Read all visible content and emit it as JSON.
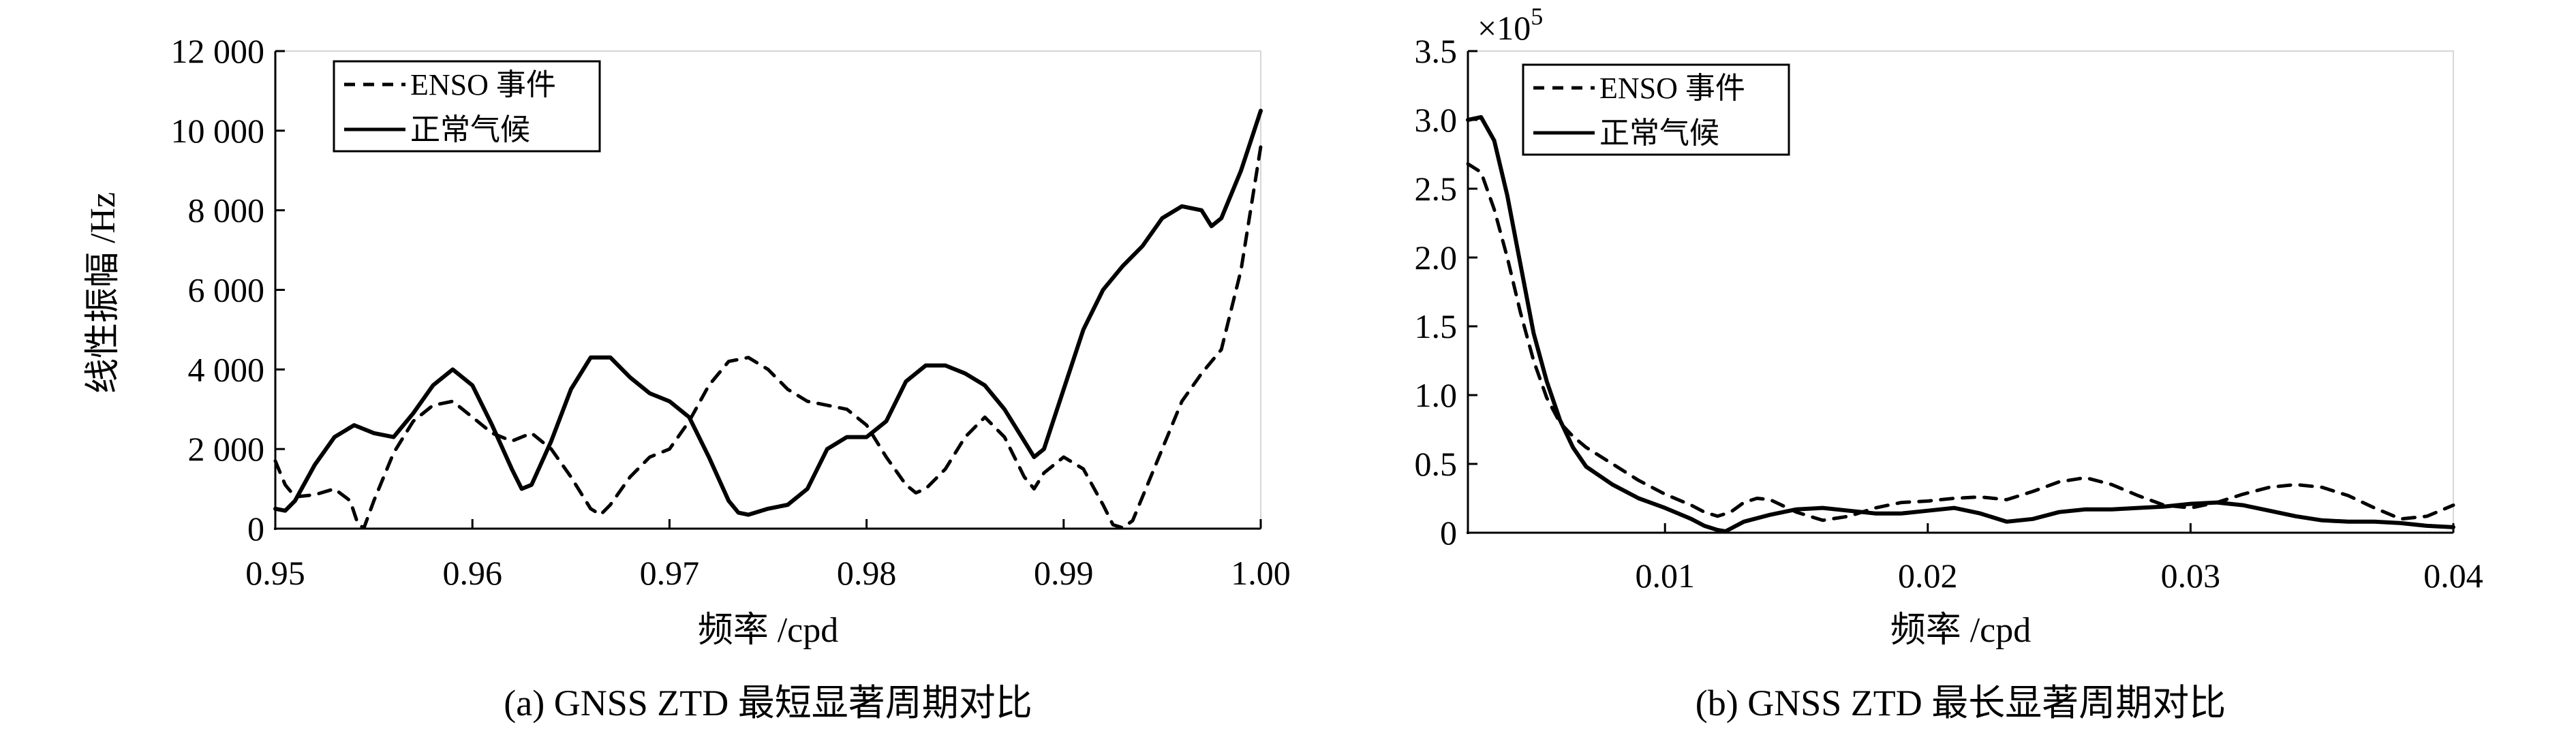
{
  "chart_data": [
    {
      "type": "line",
      "panel": "a",
      "caption": "(a) GNSS ZTD 最短显著周期对比",
      "xlabel": "频率 /cpd",
      "ylabel": "线性振幅 /Hz",
      "xlim": [
        0.95,
        1.0
      ],
      "ylim": [
        0,
        12000
      ],
      "y_multiplier": "",
      "xticks": [
        0.95,
        0.96,
        0.97,
        0.98,
        0.99,
        1.0
      ],
      "xtick_labels": [
        "0.95",
        "0.96",
        "0.97",
        "0.98",
        "0.99",
        "1.00"
      ],
      "yticks": [
        0,
        2000,
        4000,
        6000,
        8000,
        10000,
        12000
      ],
      "ytick_labels": [
        "0",
        "2 000",
        "4 000",
        "6 000",
        "8 000",
        "10 000",
        "12 000"
      ],
      "legend_position": "top-left",
      "series": [
        {
          "name": "ENSO 事件",
          "style": "dashed",
          "points": [
            [
              0.95,
              1700
            ],
            [
              0.9505,
              1100
            ],
            [
              0.951,
              800
            ],
            [
              0.952,
              850
            ],
            [
              0.953,
              1000
            ],
            [
              0.9538,
              700
            ],
            [
              0.9542,
              100
            ],
            [
              0.9545,
              20
            ],
            [
              0.955,
              700
            ],
            [
              0.956,
              1900
            ],
            [
              0.957,
              2700
            ],
            [
              0.958,
              3100
            ],
            [
              0.959,
              3200
            ],
            [
              0.96,
              2800
            ],
            [
              0.961,
              2400
            ],
            [
              0.962,
              2200
            ],
            [
              0.9625,
              2300
            ],
            [
              0.963,
              2400
            ],
            [
              0.964,
              2000
            ],
            [
              0.965,
              1300
            ],
            [
              0.966,
              500
            ],
            [
              0.9665,
              350
            ],
            [
              0.967,
              600
            ],
            [
              0.968,
              1300
            ],
            [
              0.969,
              1800
            ],
            [
              0.97,
              2000
            ],
            [
              0.971,
              2700
            ],
            [
              0.972,
              3600
            ],
            [
              0.973,
              4200
            ],
            [
              0.974,
              4300
            ],
            [
              0.975,
              4000
            ],
            [
              0.976,
              3500
            ],
            [
              0.977,
              3200
            ],
            [
              0.978,
              3100
            ],
            [
              0.979,
              3000
            ],
            [
              0.98,
              2600
            ],
            [
              0.981,
              1800
            ],
            [
              0.982,
              1100
            ],
            [
              0.9825,
              900
            ],
            [
              0.983,
              1000
            ],
            [
              0.984,
              1500
            ],
            [
              0.985,
              2300
            ],
            [
              0.986,
              2800
            ],
            [
              0.987,
              2300
            ],
            [
              0.988,
              1300
            ],
            [
              0.9885,
              1000
            ],
            [
              0.989,
              1400
            ],
            [
              0.99,
              1800
            ],
            [
              0.991,
              1500
            ],
            [
              0.992,
              600
            ],
            [
              0.9925,
              100
            ],
            [
              0.993,
              20
            ],
            [
              0.9935,
              200
            ],
            [
              0.994,
              800
            ],
            [
              0.995,
              2000
            ],
            [
              0.996,
              3200
            ],
            [
              0.997,
              3900
            ],
            [
              0.998,
              4500
            ],
            [
              0.999,
              6500
            ],
            [
              1.0,
              9600
            ]
          ]
        },
        {
          "name": "正常气候",
          "style": "solid",
          "points": [
            [
              0.95,
              500
            ],
            [
              0.9505,
              450
            ],
            [
              0.951,
              700
            ],
            [
              0.952,
              1600
            ],
            [
              0.953,
              2300
            ],
            [
              0.954,
              2600
            ],
            [
              0.955,
              2400
            ],
            [
              0.956,
              2300
            ],
            [
              0.957,
              2900
            ],
            [
              0.958,
              3600
            ],
            [
              0.959,
              4000
            ],
            [
              0.96,
              3600
            ],
            [
              0.961,
              2600
            ],
            [
              0.962,
              1500
            ],
            [
              0.9625,
              1000
            ],
            [
              0.963,
              1100
            ],
            [
              0.964,
              2200
            ],
            [
              0.965,
              3500
            ],
            [
              0.966,
              4300
            ],
            [
              0.967,
              4300
            ],
            [
              0.968,
              3800
            ],
            [
              0.969,
              3400
            ],
            [
              0.97,
              3200
            ],
            [
              0.971,
              2800
            ],
            [
              0.972,
              1800
            ],
            [
              0.973,
              700
            ],
            [
              0.9735,
              400
            ],
            [
              0.974,
              350
            ],
            [
              0.975,
              500
            ],
            [
              0.976,
              600
            ],
            [
              0.977,
              1000
            ],
            [
              0.978,
              2000
            ],
            [
              0.979,
              2300
            ],
            [
              0.98,
              2300
            ],
            [
              0.981,
              2700
            ],
            [
              0.982,
              3700
            ],
            [
              0.983,
              4100
            ],
            [
              0.984,
              4100
            ],
            [
              0.985,
              3900
            ],
            [
              0.986,
              3600
            ],
            [
              0.987,
              3000
            ],
            [
              0.988,
              2200
            ],
            [
              0.9885,
              1800
            ],
            [
              0.989,
              2000
            ],
            [
              0.99,
              3500
            ],
            [
              0.991,
              5000
            ],
            [
              0.992,
              6000
            ],
            [
              0.993,
              6600
            ],
            [
              0.994,
              7100
            ],
            [
              0.995,
              7800
            ],
            [
              0.996,
              8100
            ],
            [
              0.997,
              8000
            ],
            [
              0.9975,
              7600
            ],
            [
              0.998,
              7800
            ],
            [
              0.999,
              9000
            ],
            [
              1.0,
              10500
            ]
          ]
        }
      ]
    },
    {
      "type": "line",
      "panel": "b",
      "caption": "(b) GNSS ZTD 最长显著周期对比",
      "xlabel": "频率 /cpd",
      "ylabel": "",
      "xlim": [
        0.0025,
        0.04
      ],
      "ylim": [
        0,
        3.5
      ],
      "y_multiplier": "×10",
      "y_multiplier_exp": "5",
      "xticks": [
        0.01,
        0.02,
        0.03,
        0.04
      ],
      "xtick_labels": [
        "0.01",
        "0.02",
        "0.03",
        "0.04"
      ],
      "yticks": [
        0,
        0.5,
        1.0,
        1.5,
        2.0,
        2.5,
        3.0,
        3.5
      ],
      "ytick_labels": [
        "0",
        "0.5",
        "1.0",
        "1.5",
        "2.0",
        "2.5",
        "3.0",
        "3.5"
      ],
      "legend_position": "top-left",
      "series": [
        {
          "name": "ENSO 事件",
          "style": "dashed",
          "points": [
            [
              0.0025,
              2.68
            ],
            [
              0.003,
              2.62
            ],
            [
              0.0035,
              2.35
            ],
            [
              0.004,
              2.0
            ],
            [
              0.0045,
              1.6
            ],
            [
              0.005,
              1.25
            ],
            [
              0.0055,
              0.98
            ],
            [
              0.006,
              0.8
            ],
            [
              0.0065,
              0.7
            ],
            [
              0.007,
              0.62
            ],
            [
              0.008,
              0.5
            ],
            [
              0.009,
              0.38
            ],
            [
              0.01,
              0.28
            ],
            [
              0.011,
              0.2
            ],
            [
              0.0115,
              0.15
            ],
            [
              0.012,
              0.12
            ],
            [
              0.0125,
              0.15
            ],
            [
              0.013,
              0.22
            ],
            [
              0.0135,
              0.25
            ],
            [
              0.014,
              0.24
            ],
            [
              0.015,
              0.15
            ],
            [
              0.016,
              0.09
            ],
            [
              0.017,
              0.12
            ],
            [
              0.018,
              0.18
            ],
            [
              0.019,
              0.22
            ],
            [
              0.02,
              0.23
            ],
            [
              0.021,
              0.25
            ],
            [
              0.022,
              0.26
            ],
            [
              0.023,
              0.24
            ],
            [
              0.024,
              0.3
            ],
            [
              0.025,
              0.37
            ],
            [
              0.026,
              0.4
            ],
            [
              0.027,
              0.35
            ],
            [
              0.028,
              0.27
            ],
            [
              0.029,
              0.2
            ],
            [
              0.03,
              0.18
            ],
            [
              0.031,
              0.22
            ],
            [
              0.032,
              0.28
            ],
            [
              0.033,
              0.33
            ],
            [
              0.034,
              0.35
            ],
            [
              0.035,
              0.33
            ],
            [
              0.036,
              0.27
            ],
            [
              0.037,
              0.18
            ],
            [
              0.038,
              0.1
            ],
            [
              0.039,
              0.12
            ],
            [
              0.04,
              0.2
            ]
          ]
        },
        {
          "name": "正常气候",
          "style": "solid",
          "points": [
            [
              0.0025,
              3.0
            ],
            [
              0.003,
              3.02
            ],
            [
              0.0035,
              2.85
            ],
            [
              0.004,
              2.45
            ],
            [
              0.0045,
              1.95
            ],
            [
              0.005,
              1.45
            ],
            [
              0.0055,
              1.1
            ],
            [
              0.006,
              0.82
            ],
            [
              0.0065,
              0.62
            ],
            [
              0.007,
              0.48
            ],
            [
              0.008,
              0.35
            ],
            [
              0.009,
              0.25
            ],
            [
              0.01,
              0.18
            ],
            [
              0.011,
              0.1
            ],
            [
              0.0115,
              0.05
            ],
            [
              0.012,
              0.02
            ],
            [
              0.0123,
              0.01
            ],
            [
              0.013,
              0.08
            ],
            [
              0.014,
              0.13
            ],
            [
              0.015,
              0.17
            ],
            [
              0.016,
              0.18
            ],
            [
              0.017,
              0.16
            ],
            [
              0.018,
              0.14
            ],
            [
              0.019,
              0.14
            ],
            [
              0.02,
              0.16
            ],
            [
              0.021,
              0.18
            ],
            [
              0.022,
              0.14
            ],
            [
              0.023,
              0.08
            ],
            [
              0.024,
              0.1
            ],
            [
              0.025,
              0.15
            ],
            [
              0.026,
              0.17
            ],
            [
              0.027,
              0.17
            ],
            [
              0.028,
              0.18
            ],
            [
              0.029,
              0.19
            ],
            [
              0.03,
              0.21
            ],
            [
              0.031,
              0.22
            ],
            [
              0.032,
              0.2
            ],
            [
              0.033,
              0.16
            ],
            [
              0.034,
              0.12
            ],
            [
              0.035,
              0.09
            ],
            [
              0.036,
              0.08
            ],
            [
              0.037,
              0.08
            ],
            [
              0.038,
              0.07
            ],
            [
              0.039,
              0.05
            ],
            [
              0.04,
              0.04
            ]
          ]
        }
      ]
    }
  ]
}
